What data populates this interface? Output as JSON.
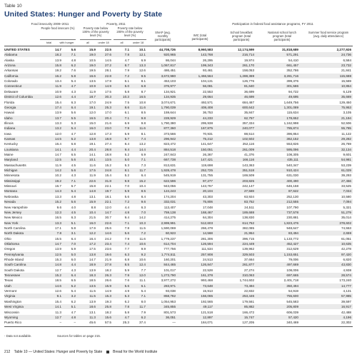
{
  "table_label": "Table 10",
  "title": "United States: Hunger and Poverty by State",
  "groups": {
    "food_insecurity": "Food insecurity 2009–2011",
    "poverty": "Poverty, 2011",
    "participation": "Participation in federal food assistance programs, FY 2011"
  },
  "col_headers": [
    "People food insecure (%)",
    "Poverty rate below 100% of the poverty level (%)",
    "Poverty rate below 200% of the poverty level (%)",
    "SNAP (avg. monthly participants)",
    "WIC (total participants)",
    "School breakfast program (total participants)",
    "National school lunch program (total participants)",
    "Summer food service program (avg. daily attendance)"
  ],
  "sub_headers": [
    "total",
    "with hunger",
    "all",
    "under 18",
    "all",
    "under 18"
  ],
  "rows": [
    {
      "state": "UNITED STATES",
      "v": [
        "14.7",
        "5.6",
        "15.9",
        "22.5",
        "7.1",
        "10.1",
        "44,708,726",
        "8,960,583",
        "12,174,599",
        "31,818,689",
        "2,277,926"
      ]
    },
    {
      "state": "Alabama",
      "v": [
        "18.2",
        "7.1",
        "19.0",
        "27.6",
        "7.8",
        "12.1",
        "920,965",
        "143,768",
        "216,714",
        "571,291",
        "24,736"
      ]
    },
    {
      "state": "Alaska",
      "v": [
        "13.9",
        "4.8",
        "10.5",
        "14.5",
        "4.7",
        "6.9",
        "86,044",
        "26,295",
        "19,974",
        "54,410",
        "6,584"
      ]
    },
    {
      "state": "Arizona",
      "v": [
        "15.8",
        "6.2",
        "19.0",
        "27.2",
        "8.7",
        "13.3",
        "1,067,817",
        "199,343",
        "261,170",
        "661,457",
        "23,732"
      ]
    },
    {
      "state": "Arkansas",
      "v": [
        "19.2",
        "7.6",
        "19.5",
        "28.1",
        "7.9",
        "12.6",
        "486,451",
        "93,461",
        "158,053",
        "352,786",
        "21,841"
      ]
    },
    {
      "state": "California",
      "v": [
        "16.2",
        "5.8",
        "16.6",
        "22.8",
        "7.2",
        "9.5",
        "3,672,980",
        "1,466,564",
        "1,288,369",
        "3,281,716",
        "115,688"
      ]
    },
    {
      "state": "Colorado",
      "v": [
        "13.4",
        "5.4",
        "13.5",
        "17.9",
        "6.1",
        "8.1",
        "453,103",
        "104,131",
        "126,776",
        "399,376",
        "15,569"
      ]
    },
    {
      "state": "Connecticut",
      "v": [
        "11.9",
        "4.7",
        "10.9",
        "14.9",
        "5.0",
        "6.8",
        "376,977",
        "56,081",
        "81,640",
        "301,586",
        "10,854"
      ]
    },
    {
      "state": "Delaware",
      "v": [
        "10.9",
        "4.3",
        "11.9",
        "17.5",
        "5.8",
        "8.7",
        "134,921",
        "22,553",
        "36,699",
        "94,722",
        "6,129"
      ]
    },
    {
      "state": "District of Columbia",
      "v": [
        "12.6",
        "4.4",
        "18.7",
        "30.3",
        "10.3",
        "16.5",
        "134,935",
        "29,664",
        "46,699",
        "49,695",
        "35,669"
      ]
    },
    {
      "state": "Florida",
      "v": [
        "15.4",
        "6.3",
        "17.0",
        "24.9",
        "7.5",
        "10.8",
        "3,074,671",
        "492,571",
        "684,487",
        "1,649,756",
        "129,450"
      ]
    },
    {
      "state": "Georgia",
      "v": [
        "17.4",
        "6.4",
        "19.1",
        "25.3",
        "8.6",
        "11.6",
        "1,790,039",
        "408,408",
        "600,642",
        "1,301,089",
        "75,953"
      ]
    },
    {
      "state": "Hawaii",
      "v": [
        "13.9",
        "5.6",
        "12.0",
        "17.0",
        "6.1",
        "8.5",
        "159,644",
        "36,753",
        "35,847",
        "115,634",
        "3,105"
      ]
    },
    {
      "state": "Idaho",
      "v": [
        "13.7",
        "5.5",
        "16.5",
        "20.4",
        "7.1",
        "9.8",
        "228,929",
        "44,233",
        "62,757",
        "178,652",
        "21,194"
      ]
    },
    {
      "state": "Illinois",
      "v": [
        "13.3",
        "5.3",
        "15.0",
        "21.6",
        "6.9",
        "9.8",
        "1,790,380",
        "295,938",
        "357,334",
        "1,162,998",
        "52,506"
      ]
    },
    {
      "state": "Indiana",
      "v": [
        "13.2",
        "5.4",
        "16.0",
        "23.0",
        "7.9",
        "11.6",
        "877,360",
        "167,875",
        "240,077",
        "785,874",
        "55,785"
      ]
    },
    {
      "state": "Iowa",
      "v": [
        "12.0",
        "4.7",
        "12.8",
        "17.3",
        "5.9",
        "8.1",
        "373,566",
        "70,931",
        "88,514",
        "396,854",
        "11,122"
      ]
    },
    {
      "state": "Kansas",
      "v": [
        "14.5",
        "5.2",
        "13.8",
        "18.8",
        "5.7",
        "7.4",
        "296,942",
        "75,212",
        "102,502",
        "362,152",
        "29,282"
      ]
    },
    {
      "state": "Kentucky",
      "v": [
        "16.4",
        "6.8",
        "19.1",
        "27.4",
        "8.4",
        "13.2",
        "823,472",
        "141,647",
        "252,116",
        "553,826",
        "26,769"
      ]
    },
    {
      "state": "Louisiana",
      "v": [
        "14.1",
        "4.4",
        "20.4",
        "28.8",
        "9.4",
        "14.4",
        "884,518",
        "150,051",
        "261,009",
        "595,096",
        "32,134"
      ]
    },
    {
      "state": "Maine",
      "v": [
        "14.7",
        "6.5",
        "14.1",
        "18.8",
        "5.2",
        "6.9",
        "247,843",
        "26,367",
        "41,376",
        "108,305",
        "9,601"
      ]
    },
    {
      "state": "Maryland",
      "v": [
        "12.5",
        "5.6",
        "10.1",
        "13.5",
        "5.0",
        "7.1",
        "667,738",
        "147,421",
        "166,116",
        "435,111",
        "54,981"
      ]
    },
    {
      "state": "Massachusetts",
      "v": [
        "11.9",
        "4.5",
        "11.6",
        "15.2",
        "5.3",
        "7.3",
        "813,631",
        "119,698",
        "143,363",
        "540,347",
        "53,239"
      ]
    },
    {
      "state": "Michigan",
      "v": [
        "14.2",
        "5.6",
        "17.5",
        "24.8",
        "8.1",
        "11.7",
        "1,928,478",
        "252,725",
        "351,518",
        "910,424",
        "61,029"
      ]
    },
    {
      "state": "Minnesota",
      "v": [
        "10.2",
        "4.3",
        "11.9",
        "15.4",
        "5.2",
        "6.4",
        "545,919",
        "131,755",
        "169,509",
        "631,030",
        "39,293"
      ]
    },
    {
      "state": "Mississippi",
      "v": [
        "19.2",
        "7.1",
        "22.6",
        "31.8",
        "9.8",
        "15.2",
        "622,596",
        "97,277",
        "203,825",
        "400,490",
        "27,456"
      ]
    },
    {
      "state": "Missouri",
      "v": [
        "16.7",
        "6.7",
        "15.8",
        "22.1",
        "7.0",
        "10.4",
        "943,056",
        "143,767",
        "242,147",
        "646,158",
        "33,525"
      ]
    },
    {
      "state": "Montana",
      "v": [
        "14.3",
        "5.4",
        "14.8",
        "19.7",
        "5.9",
        "8.5",
        "124,243",
        "20,104",
        "27,569",
        "87,622",
        "7,034"
      ]
    },
    {
      "state": "Nebraska",
      "v": [
        "13.3",
        "4.8",
        "13.1",
        "18.1",
        "5.6",
        "8.4",
        "174,204",
        "43,303",
        "63,924",
        "252,130",
        "10,580"
      ]
    },
    {
      "state": "Nevada",
      "v": [
        "15.2",
        "5.6",
        "15.9",
        "22.1",
        "7.2",
        "9.6",
        "332,031",
        "75,806",
        "83,752",
        "212,555",
        "7,094"
      ]
    },
    {
      "state": "New Hampshire",
      "v": [
        "9.6",
        "4.0",
        "8.8",
        "12.0",
        "4.4",
        "6.3",
        "113,407",
        "17,048",
        "24,511",
        "107,790",
        "5,321"
      ]
    },
    {
      "state": "New Jersey",
      "v": [
        "12.3",
        "4.5",
        "10.4",
        "14.7",
        "4.8",
        "7.0",
        "759,138",
        "168,467",
        "189,688",
        "737,578",
        "51,279"
      ]
    },
    {
      "state": "New Mexico",
      "v": [
        "16.5",
        "6.3",
        "21.5",
        "30.7",
        "9.4",
        "14.2",
        "414,275",
        "64,304",
        "138,830",
        "230,881",
        "35,014"
      ]
    },
    {
      "state": "New York",
      "v": [
        "13.3",
        "5.1",
        "16.0",
        "22.6",
        "7.1",
        "10.3",
        "2,999,991",
        "512,603",
        "614,752",
        "1,823,476",
        "378,602"
      ]
    },
    {
      "state": "North Carolina",
      "v": [
        "17.1",
        "5.8",
        "17.9",
        "25.6",
        "7.8",
        "11.5",
        "1,590,069",
        "266,478",
        "382,085",
        "948,647",
        "74,553"
      ]
    },
    {
      "state": "North Dakota",
      "v": [
        "7.8",
        "3.1",
        "12.2",
        "14.6",
        "5.6",
        "7.2",
        "60,923",
        "14,568",
        "21,954",
        "83,494",
        "2,659"
      ]
    },
    {
      "state": "Ohio",
      "v": [
        "15.5",
        "6.4",
        "16.4",
        "24.2",
        "7.9",
        "11.6",
        "1,779,237",
        "281,306",
        "396,715",
        "1,133,772",
        "61,051"
      ]
    },
    {
      "state": "Oklahoma",
      "v": [
        "14.7",
        "7.0",
        "17.2",
        "23.4",
        "7.4",
        "10.6",
        "614,704",
        "126,594",
        "224,449",
        "452,427",
        "10,635"
      ]
    },
    {
      "state": "Oregon",
      "v": [
        "13.9",
        "5.9",
        "17.5",
        "23.6",
        "7.7",
        "9.9",
        "777,756",
        "111,534",
        "139,962",
        "312,629",
        "42,278"
      ]
    },
    {
      "state": "Pennsylvania",
      "v": [
        "12.5",
        "5.0",
        "13.8",
        "19.6",
        "6.3",
        "9.2",
        "1,774,511",
        "257,908",
        "329,503",
        "1,153,651",
        "97,420"
      ]
    },
    {
      "state": "Rhode Island",
      "v": [
        "15.3",
        "6.0",
        "14.7",
        "21.9",
        "6.8",
        "10.6",
        "160,201",
        "24,513",
        "37,664",
        "79,006",
        "6,820"
      ]
    },
    {
      "state": "South Carolina",
      "v": [
        "14.8",
        "4.4",
        "18.9",
        "27.8",
        "8.5",
        "12.4",
        "844,465",
        "126,847",
        "261,877",
        "497,669",
        "43,830"
      ]
    },
    {
      "state": "South Dakota",
      "v": [
        "12.7",
        "4.3",
        "13.9",
        "18.2",
        "5.9",
        "7.7",
        "101,017",
        "22,528",
        "27,274",
        "108,006",
        "4,938"
      ]
    },
    {
      "state": "Tennessee",
      "v": [
        "15.2",
        "6.4",
        "18.3",
        "26.3",
        "7.9",
        "12.0",
        "1,273,790",
        "161,378",
        "310,063",
        "697,665",
        "28,574"
      ]
    },
    {
      "state": "Texas",
      "v": [
        "18.5",
        "6.5",
        "18.5",
        "26.6",
        "7.6",
        "11.1",
        "3,977,272",
        "993,468",
        "1,744,602",
        "2,401,718",
        "173,240"
      ]
    },
    {
      "state": "Utah",
      "v": [
        "14.6",
        "5.2",
        "13.5",
        "15.9",
        "5.6",
        "6.1",
        "283,971",
        "73,648",
        "73,494",
        "350,494",
        "14,777"
      ]
    },
    {
      "state": "Vermont",
      "v": [
        "12.6",
        "5.4",
        "11.5",
        "14.9",
        "4.9",
        "5.4",
        "93,038",
        "15,913",
        "22,832",
        "54,919",
        "4,131"
      ]
    },
    {
      "state": "Virginia",
      "v": [
        "9.1",
        "3.2",
        "11.5",
        "15.3",
        "5.3",
        "7.1",
        "858,782",
        "156,065",
        "253,446",
        "755,600",
        "57,985"
      ]
    },
    {
      "state": "Washington",
      "v": [
        "15.4",
        "6.2",
        "13.9",
        "19.3",
        "6.2",
        "8.0",
        "1,054,953",
        "192,565",
        "179,561",
        "545,583",
        "39,597"
      ]
    },
    {
      "state": "West Virginia",
      "v": [
        "14.1",
        "5.1",
        "18.6",
        "25.8",
        "7.8",
        "11.7",
        "345,855",
        "49,117",
        "85,882",
        "205,809",
        "16,917"
      ]
    },
    {
      "state": "Wisconsin",
      "v": [
        "11.3",
        "4.7",
        "13.1",
        "18.2",
        "5.8",
        "7.9",
        "801,573",
        "121,518",
        "166,472",
        "606,039",
        "42,488"
      ]
    },
    {
      "state": "Wyoming",
      "v": [
        "12.7",
        "4.8",
        "11.3",
        "15.6",
        "4.7",
        "6.2",
        "36,051",
        "12,897",
        "15,747",
        "57,420",
        "4,196"
      ]
    },
    {
      "state": "Puerto Rico",
      "v": [
        "–",
        "–",
        "45.6",
        "57.5",
        "25.3",
        "37.4",
        "—",
        "184,071",
        "127,205",
        "340,469",
        "22,302"
      ]
    }
  ],
  "footnotes": {
    "dash_note": "-   Data not available.",
    "sources": "Sources for tables on page 215."
  },
  "footer": {
    "page_number": "212",
    "text": "Table 10 — United States: Hunger and Poverty by State",
    "publisher": "Bread for the World Institute"
  }
}
